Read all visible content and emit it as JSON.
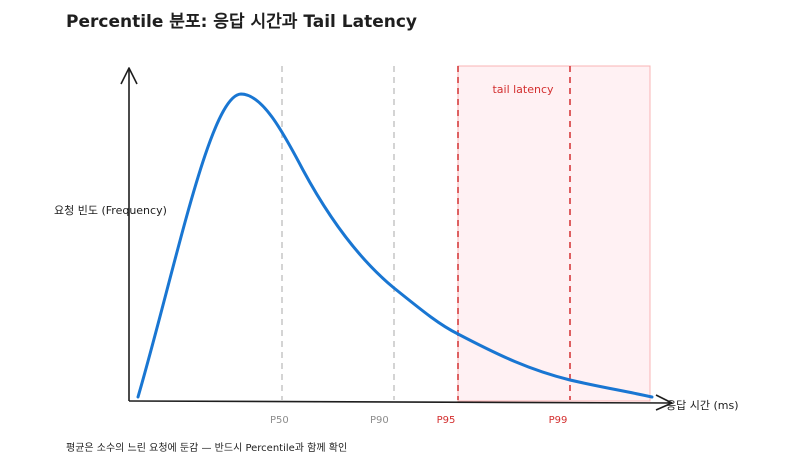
{
  "title": "Percentile 분포: 응답 시간과 Tail Latency",
  "y_axis_label": "요청 빈도 (Frequency)",
  "x_axis_label": "응답 시간 (ms)",
  "tail_zone_label": "tail latency",
  "markers": {
    "p50": "P50",
    "p90": "P90",
    "p95": "P95",
    "p99": "P99"
  },
  "footnote": "평균은 소수의 느린 요청에 둔감 — 반드시 Percentile과 함께 확인",
  "colors": {
    "curve": "#1976d2",
    "tail_fill": "#ffebee",
    "tail_line": "#d32f2f",
    "gray_line": "#bdbdbd",
    "axis": "#1e1e1e"
  }
}
